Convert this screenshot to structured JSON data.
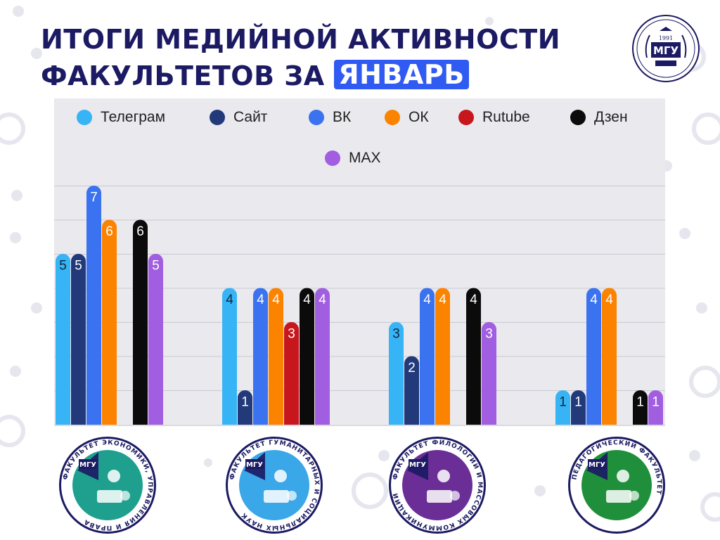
{
  "header": {
    "title_line1": "ИТОГИ МЕДИЙНОЙ АКТИВНОСТИ",
    "title_line2_prefix": "ФАКУЛЬТЕТОВ ЗА",
    "title_highlight": "ЯНВАРЬ"
  },
  "logo": {
    "year": "1991",
    "abbr": "МГУ"
  },
  "colors": {
    "title": "#1b1a63",
    "highlight": "#2f5bf2",
    "panel": "#e9e9ee"
  },
  "faculty_logos": [
    {
      "icon": "faculty-economics-logo",
      "ring_text": "ФАКУЛЬТЕТ ЭКОНОМИКИ, УПРАВЛЕНИЯ И ПРАВА",
      "color": "#1fa08f"
    },
    {
      "icon": "faculty-humanities-logo",
      "ring_text": "ФАКУЛЬТЕТ ГУМАНИТАРНЫХ И СОЦИАЛЬНЫХ НАУК",
      "color": "#3aa7e8"
    },
    {
      "icon": "faculty-philology-logo",
      "ring_text": "ФАКУЛЬТЕТ ФИЛОЛОГИИ И МАССОВЫХ КОММУНИКАЦИЙ",
      "color": "#6a2e96"
    },
    {
      "icon": "faculty-pedagogy-logo",
      "ring_text": "ПЕДАГОГИЧЕСКИЙ ФАКУЛЬТЕТ",
      "color": "#1f8f3c"
    }
  ],
  "chart_data": {
    "type": "bar",
    "categories": [
      "",
      "",
      "",
      ""
    ],
    "ylim": [
      0,
      7
    ],
    "grid": true,
    "legend_position": "top",
    "series": [
      {
        "name": "Телеграм",
        "color": "#36b4f5",
        "values": [
          5,
          4,
          3,
          1
        ]
      },
      {
        "name": "Сайт",
        "color": "#233a7a",
        "values": [
          5,
          1,
          2,
          1
        ]
      },
      {
        "name": "ВК",
        "color": "#3a72f0",
        "values": [
          7,
          4,
          4,
          4
        ]
      },
      {
        "name": "ОК",
        "color": "#fb8300",
        "values": [
          6,
          4,
          4,
          4
        ]
      },
      {
        "name": "Rutube",
        "color": "#c8161d",
        "values": [
          0,
          3,
          0,
          0
        ]
      },
      {
        "name": "Дзен",
        "color": "#0b0b0b",
        "values": [
          6,
          4,
          4,
          1
        ]
      },
      {
        "name": "MAX",
        "color": "#a15ee0",
        "values": [
          5,
          4,
          3,
          1
        ]
      }
    ]
  }
}
